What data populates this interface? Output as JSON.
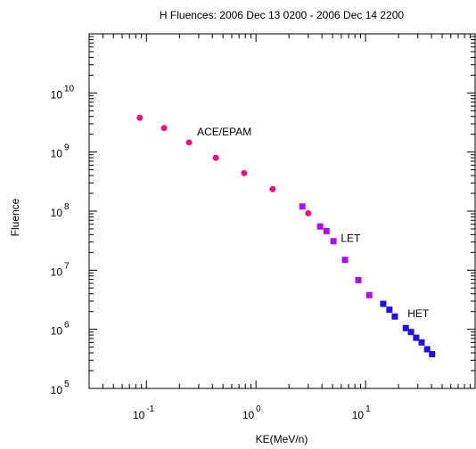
{
  "chart_data": {
    "type": "scatter",
    "title": "H Fluences: 2006 Dec 13 0200 - 2006 Dec 14 2200",
    "xlabel": "KE(MeV/n)",
    "ylabel": "Fluence",
    "x_scale": "log",
    "y_scale": "log",
    "xlim": [
      0.03,
      100
    ],
    "ylim": [
      100000,
      100000000000
    ],
    "x_ticks": [
      {
        "value": 0.1,
        "base": "10",
        "exp": "-1"
      },
      {
        "value": 1,
        "base": "10",
        "exp": "0"
      },
      {
        "value": 10,
        "base": "10",
        "exp": "1"
      }
    ],
    "y_ticks": [
      {
        "value": 100000,
        "base": "10",
        "exp": "5"
      },
      {
        "value": 1000000,
        "base": "10",
        "exp": "6"
      },
      {
        "value": 10000000,
        "base": "10",
        "exp": "7"
      },
      {
        "value": 100000000,
        "base": "10",
        "exp": "8"
      },
      {
        "value": 1000000000,
        "base": "10",
        "exp": "9"
      },
      {
        "value": 10000000000,
        "base": "10",
        "exp": "10"
      }
    ],
    "series": [
      {
        "name": "ACE/EPAM",
        "marker": "circle",
        "color": "#ee1177",
        "x": [
          0.087,
          0.145,
          0.245,
          0.43,
          0.78,
          1.42,
          3.0
        ],
        "y": [
          3800000000,
          2550000000,
          1450000000,
          800000000,
          440000000,
          235000000,
          92000000
        ]
      },
      {
        "name": "LET",
        "marker": "square",
        "color": "#aa11ee",
        "x": [
          2.65,
          3.85,
          4.4,
          5.1,
          6.5,
          8.6,
          10.8
        ],
        "y": [
          120000000,
          55000000,
          46000000,
          31000000,
          15000000,
          6800000,
          3800000
        ]
      },
      {
        "name": "HET",
        "marker": "square",
        "color": "#2211dd",
        "x": [
          14.5,
          16.5,
          18.5,
          23.3,
          26.0,
          29.0,
          32.5,
          36.5,
          40.5
        ],
        "y": [
          2700000,
          2150000,
          1650000,
          1050000,
          900000,
          720000,
          600000,
          460000,
          380000
        ]
      }
    ],
    "annotations": [
      {
        "text": "ACE/EPAM",
        "x": 0.29,
        "y": 1900000000
      },
      {
        "text": "LET",
        "x": 5.95,
        "y": 30000000
      },
      {
        "text": "HET",
        "x": 24.2,
        "y": 1600000
      }
    ],
    "grid": false,
    "legend": "none"
  }
}
